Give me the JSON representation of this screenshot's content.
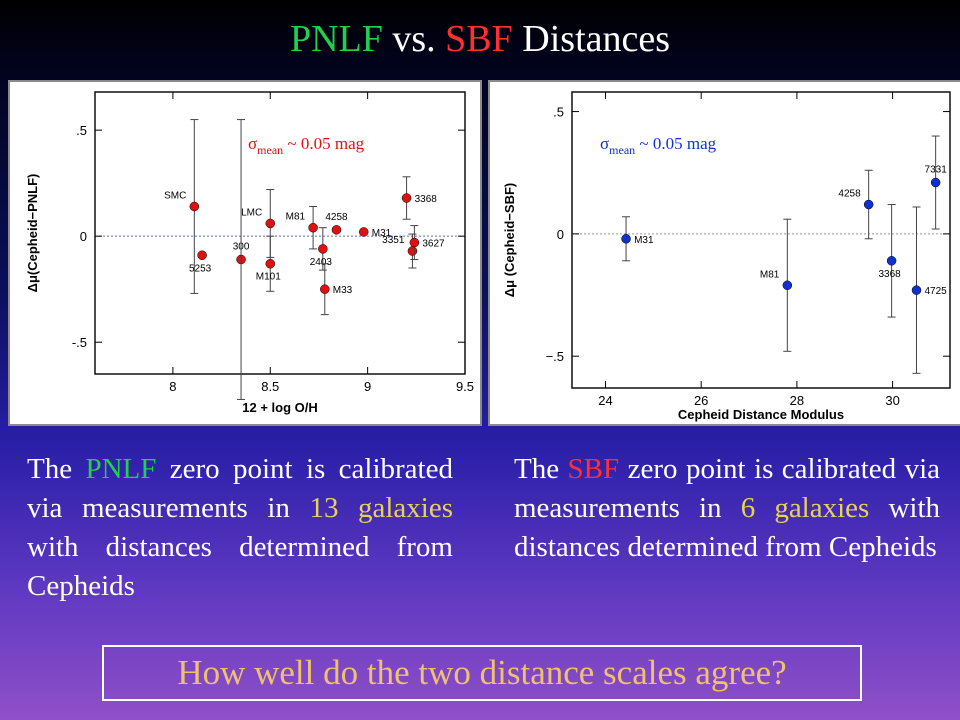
{
  "title": {
    "part1": "PNLF",
    "part2": " vs. ",
    "part3": "SBF",
    "part4": " Distances"
  },
  "left_text": {
    "w1": "The",
    "w2": "PNLF",
    "w3": "zero point is calibrated via measurements in",
    "w4": "13",
    "w5": "galaxies",
    "w6": "with distances determined from Cepheids"
  },
  "right_text": {
    "w1": "The",
    "w2": "SBF",
    "w3": "zero point is calibrated via measurements in",
    "w4": "6",
    "w5": "galaxies",
    "w6": "with distances determined from Cepheids"
  },
  "question": "How well do the two distance scales agree?",
  "colors": {
    "pnlf_green": "#1fd14c",
    "sbf_red": "#ff3030",
    "highlight_yellow": "#e8d05a",
    "question_text": "#f0c070",
    "marker_red": "#e01010",
    "marker_blue": "#1030d0"
  },
  "chart_data": [
    {
      "type": "scatter",
      "xlabel": "12 + log O/H",
      "ylabel": "Δμ(Cepheid−PNLF)",
      "xlim": [
        7.6,
        9.5
      ],
      "ylim": [
        -0.65,
        0.68
      ],
      "xticks": [
        "8",
        "8.5",
        "9",
        "9.5"
      ],
      "yticks": [
        ".5",
        "0",
        "-.5"
      ],
      "annotation": {
        "sym": "σ",
        "sub": "mean",
        "text": " ~ 0.05 mag"
      },
      "reference_line": 0,
      "marker_color": "#e01010",
      "points": [
        {
          "label": "SMC",
          "x": 8.11,
          "y": 0.14,
          "err": 0.41,
          "label_pos": "left"
        },
        {
          "label": "5253",
          "x": 8.15,
          "y": -0.09,
          "err": 0.0,
          "label_pos": "below"
        },
        {
          "label": "300",
          "x": 8.35,
          "y": -0.11,
          "err": 0.0,
          "label_pos": "above"
        },
        {
          "label": "",
          "x": 8.35,
          "y": -0.11,
          "err": 0.66
        },
        {
          "label": "LMC",
          "x": 8.5,
          "y": 0.06,
          "err": 0.16,
          "label_pos": "left"
        },
        {
          "label": "M101",
          "x": 8.5,
          "y": -0.13,
          "err": 0.13,
          "label_pos": "below"
        },
        {
          "label": "M81",
          "x": 8.72,
          "y": 0.04,
          "err": 0.1,
          "label_pos": "left"
        },
        {
          "label": "2403",
          "x": 8.77,
          "y": -0.06,
          "err": 0.1,
          "label_pos": "below"
        },
        {
          "label": "4258",
          "x": 8.84,
          "y": 0.03,
          "err": 0.0,
          "label_pos": "above"
        },
        {
          "label": "M33",
          "x": 8.78,
          "y": -0.25,
          "err": 0.12,
          "label_pos": "right"
        },
        {
          "label": "M31",
          "x": 8.98,
          "y": 0.02,
          "err": 0.0,
          "label_pos": "right"
        },
        {
          "label": "3368",
          "x": 9.2,
          "y": 0.18,
          "err": 0.1,
          "label_pos": "right"
        },
        {
          "label": "3351",
          "x": 9.23,
          "y": -0.07,
          "err": 0.08,
          "label_pos": "left"
        },
        {
          "label": "3627",
          "x": 9.24,
          "y": -0.03,
          "err": 0.08,
          "label_pos": "right"
        }
      ]
    },
    {
      "type": "scatter",
      "xlabel": "Cepheid Distance Modulus",
      "ylabel": "Δμ (Cepheid−SBF)",
      "xlim": [
        23.3,
        31.2
      ],
      "ylim": [
        -0.63,
        0.58
      ],
      "xticks": [
        "24",
        "26",
        "28",
        "30"
      ],
      "yticks": [
        ".5",
        "0",
        "−.5"
      ],
      "annotation": {
        "sym": "σ",
        "sub": "mean",
        "text": " ~ 0.05 mag"
      },
      "reference_line": 0,
      "marker_color": "#1030d0",
      "points": [
        {
          "label": "M31",
          "x": 24.43,
          "y": -0.02,
          "err": 0.09,
          "label_pos": "right"
        },
        {
          "label": "M81",
          "x": 27.8,
          "y": -0.21,
          "err": 0.27,
          "label_pos": "left"
        },
        {
          "label": "4258",
          "x": 29.5,
          "y": 0.12,
          "err": 0.14,
          "label_pos": "left"
        },
        {
          "label": "3368",
          "x": 29.98,
          "y": -0.11,
          "err": 0.23,
          "label_pos": "below"
        },
        {
          "label": "4725",
          "x": 30.5,
          "y": -0.23,
          "err": 0.34,
          "label_pos": "right"
        },
        {
          "label": "7331",
          "x": 30.9,
          "y": 0.21,
          "err": 0.19,
          "label_pos": "above"
        }
      ]
    }
  ]
}
